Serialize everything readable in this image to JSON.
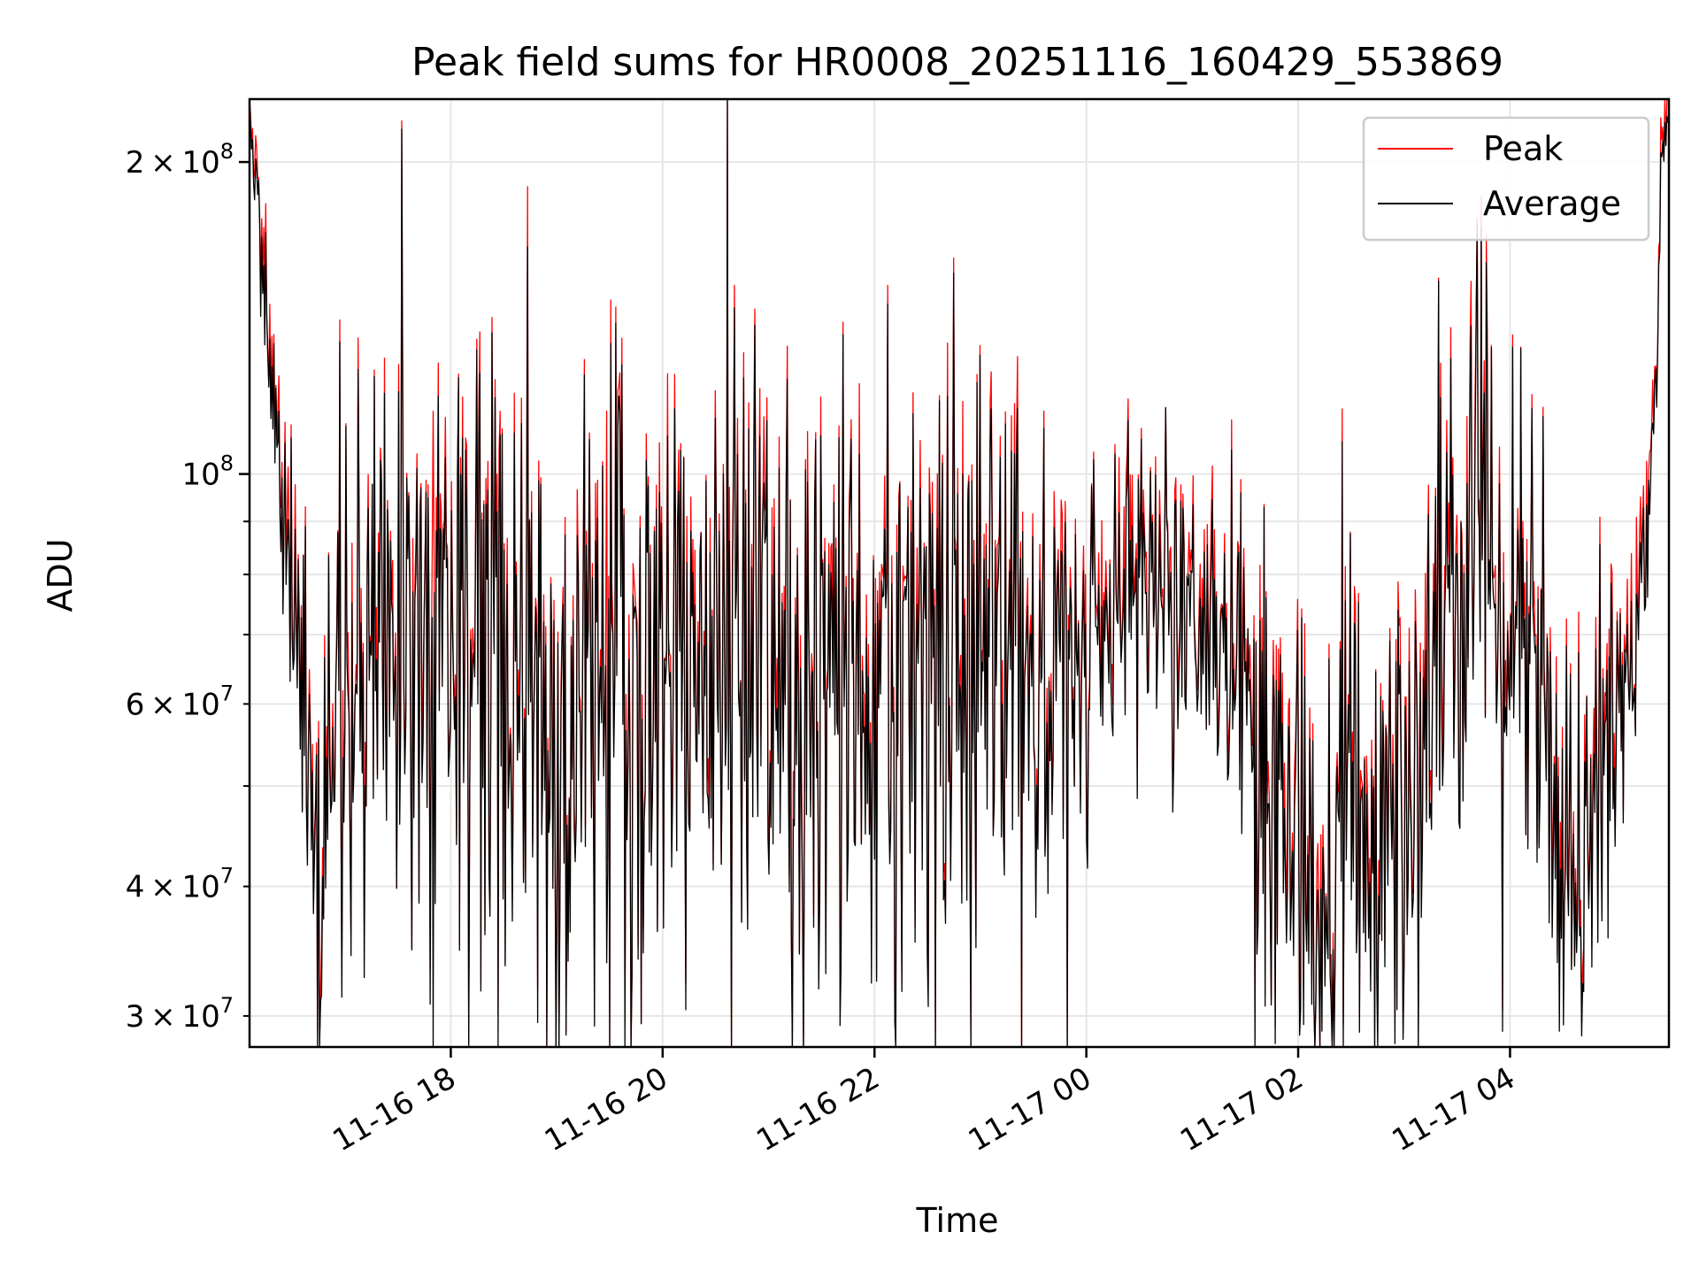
{
  "chart_data": {
    "type": "line",
    "title": "Peak field sums for HR0008_20251116_160429_553869",
    "xlabel": "Time",
    "ylabel": "ADU",
    "yscale": "log",
    "ylim": [
      28000000,
      230000000
    ],
    "xlim_hours": [
      16.1,
      29.5
    ],
    "grid": true,
    "legend_position": "upper right",
    "x_ticks": [
      {
        "label": "11-16 18",
        "hours": 18
      },
      {
        "label": "11-16 20",
        "hours": 20
      },
      {
        "label": "11-16 22",
        "hours": 22
      },
      {
        "label": "11-17 00",
        "hours": 24
      },
      {
        "label": "11-17 02",
        "hours": 26
      },
      {
        "label": "11-17 04",
        "hours": 28
      }
    ],
    "y_ticks_major": [
      {
        "value": 100000000,
        "base": "10",
        "exp": "8"
      },
      {
        "value": 200000000,
        "mantissa": "2",
        "base": "10",
        "exp": "8"
      }
    ],
    "y_ticks_minor": [
      {
        "value": 30000000,
        "mantissa": "3",
        "base": "10",
        "exp": "7"
      },
      {
        "value": 40000000,
        "mantissa": "4",
        "base": "10",
        "exp": "7"
      },
      {
        "value": 50000000
      },
      {
        "value": 60000000,
        "mantissa": "6",
        "base": "10",
        "exp": "7"
      },
      {
        "value": 70000000
      },
      {
        "value": 80000000
      },
      {
        "value": 90000000
      }
    ],
    "series": [
      {
        "name": "Peak",
        "color": "#ff0000",
        "noise_level": 0.06,
        "spikes": [
          {
            "hours": 17.83,
            "value": 115000000
          },
          {
            "hours": 19.47,
            "value": 115000000
          }
        ]
      },
      {
        "name": "Average",
        "color": "#000000"
      }
    ],
    "trend_points": [
      {
        "hours": 16.1,
        "value": 230000000
      },
      {
        "hours": 16.22,
        "value": 160000000
      },
      {
        "hours": 16.33,
        "value": 110000000
      },
      {
        "hours": 16.45,
        "value": 90000000
      },
      {
        "hours": 16.55,
        "value": 65000000
      },
      {
        "hours": 16.7,
        "value": 40000000
      },
      {
        "hours": 16.85,
        "value": 46000000
      },
      {
        "hours": 17.0,
        "value": 58000000
      },
      {
        "hours": 17.3,
        "value": 68000000
      },
      {
        "hours": 17.8,
        "value": 68000000
      },
      {
        "hours": 18.5,
        "value": 62000000
      },
      {
        "hours": 18.9,
        "value": 53000000
      },
      {
        "hours": 19.3,
        "value": 66000000
      },
      {
        "hours": 20.0,
        "value": 60000000
      },
      {
        "hours": 21.0,
        "value": 64000000
      },
      {
        "hours": 22.0,
        "value": 67000000
      },
      {
        "hours": 23.0,
        "value": 70000000
      },
      {
        "hours": 24.0,
        "value": 67000000
      },
      {
        "hours": 24.5,
        "value": 80000000
      },
      {
        "hours": 25.0,
        "value": 72000000
      },
      {
        "hours": 25.4,
        "value": 67000000
      },
      {
        "hours": 25.6,
        "value": 52000000
      },
      {
        "hours": 26.0,
        "value": 45000000
      },
      {
        "hours": 26.2,
        "value": 36000000
      },
      {
        "hours": 26.5,
        "value": 47000000
      },
      {
        "hours": 26.7,
        "value": 41000000
      },
      {
        "hours": 27.0,
        "value": 50000000
      },
      {
        "hours": 27.3,
        "value": 70000000
      },
      {
        "hours": 27.8,
        "value": 85000000
      },
      {
        "hours": 28.3,
        "value": 55000000
      },
      {
        "hours": 28.6,
        "value": 44000000
      },
      {
        "hours": 28.8,
        "value": 48000000
      },
      {
        "hours": 29.0,
        "value": 60000000
      },
      {
        "hours": 29.2,
        "value": 68000000
      },
      {
        "hours": 29.35,
        "value": 110000000
      },
      {
        "hours": 29.5,
        "value": 230000000
      }
    ],
    "noise_amplitude": [
      {
        "hours": 16.1,
        "amp": 0.03
      },
      {
        "hours": 16.45,
        "amp": 0.05
      },
      {
        "hours": 16.6,
        "amp": 0.2
      },
      {
        "hours": 17.0,
        "amp": 0.17
      },
      {
        "hours": 20.0,
        "amp": 0.2
      },
      {
        "hours": 23.0,
        "amp": 0.17
      },
      {
        "hours": 24.4,
        "amp": 0.08
      },
      {
        "hours": 25.1,
        "amp": 0.08
      },
      {
        "hours": 25.5,
        "amp": 0.14
      },
      {
        "hours": 27.0,
        "amp": 0.16
      },
      {
        "hours": 29.0,
        "amp": 0.12
      },
      {
        "hours": 29.2,
        "amp": 0.05
      },
      {
        "hours": 29.5,
        "amp": 0.04
      }
    ],
    "sample_count": 1400
  }
}
